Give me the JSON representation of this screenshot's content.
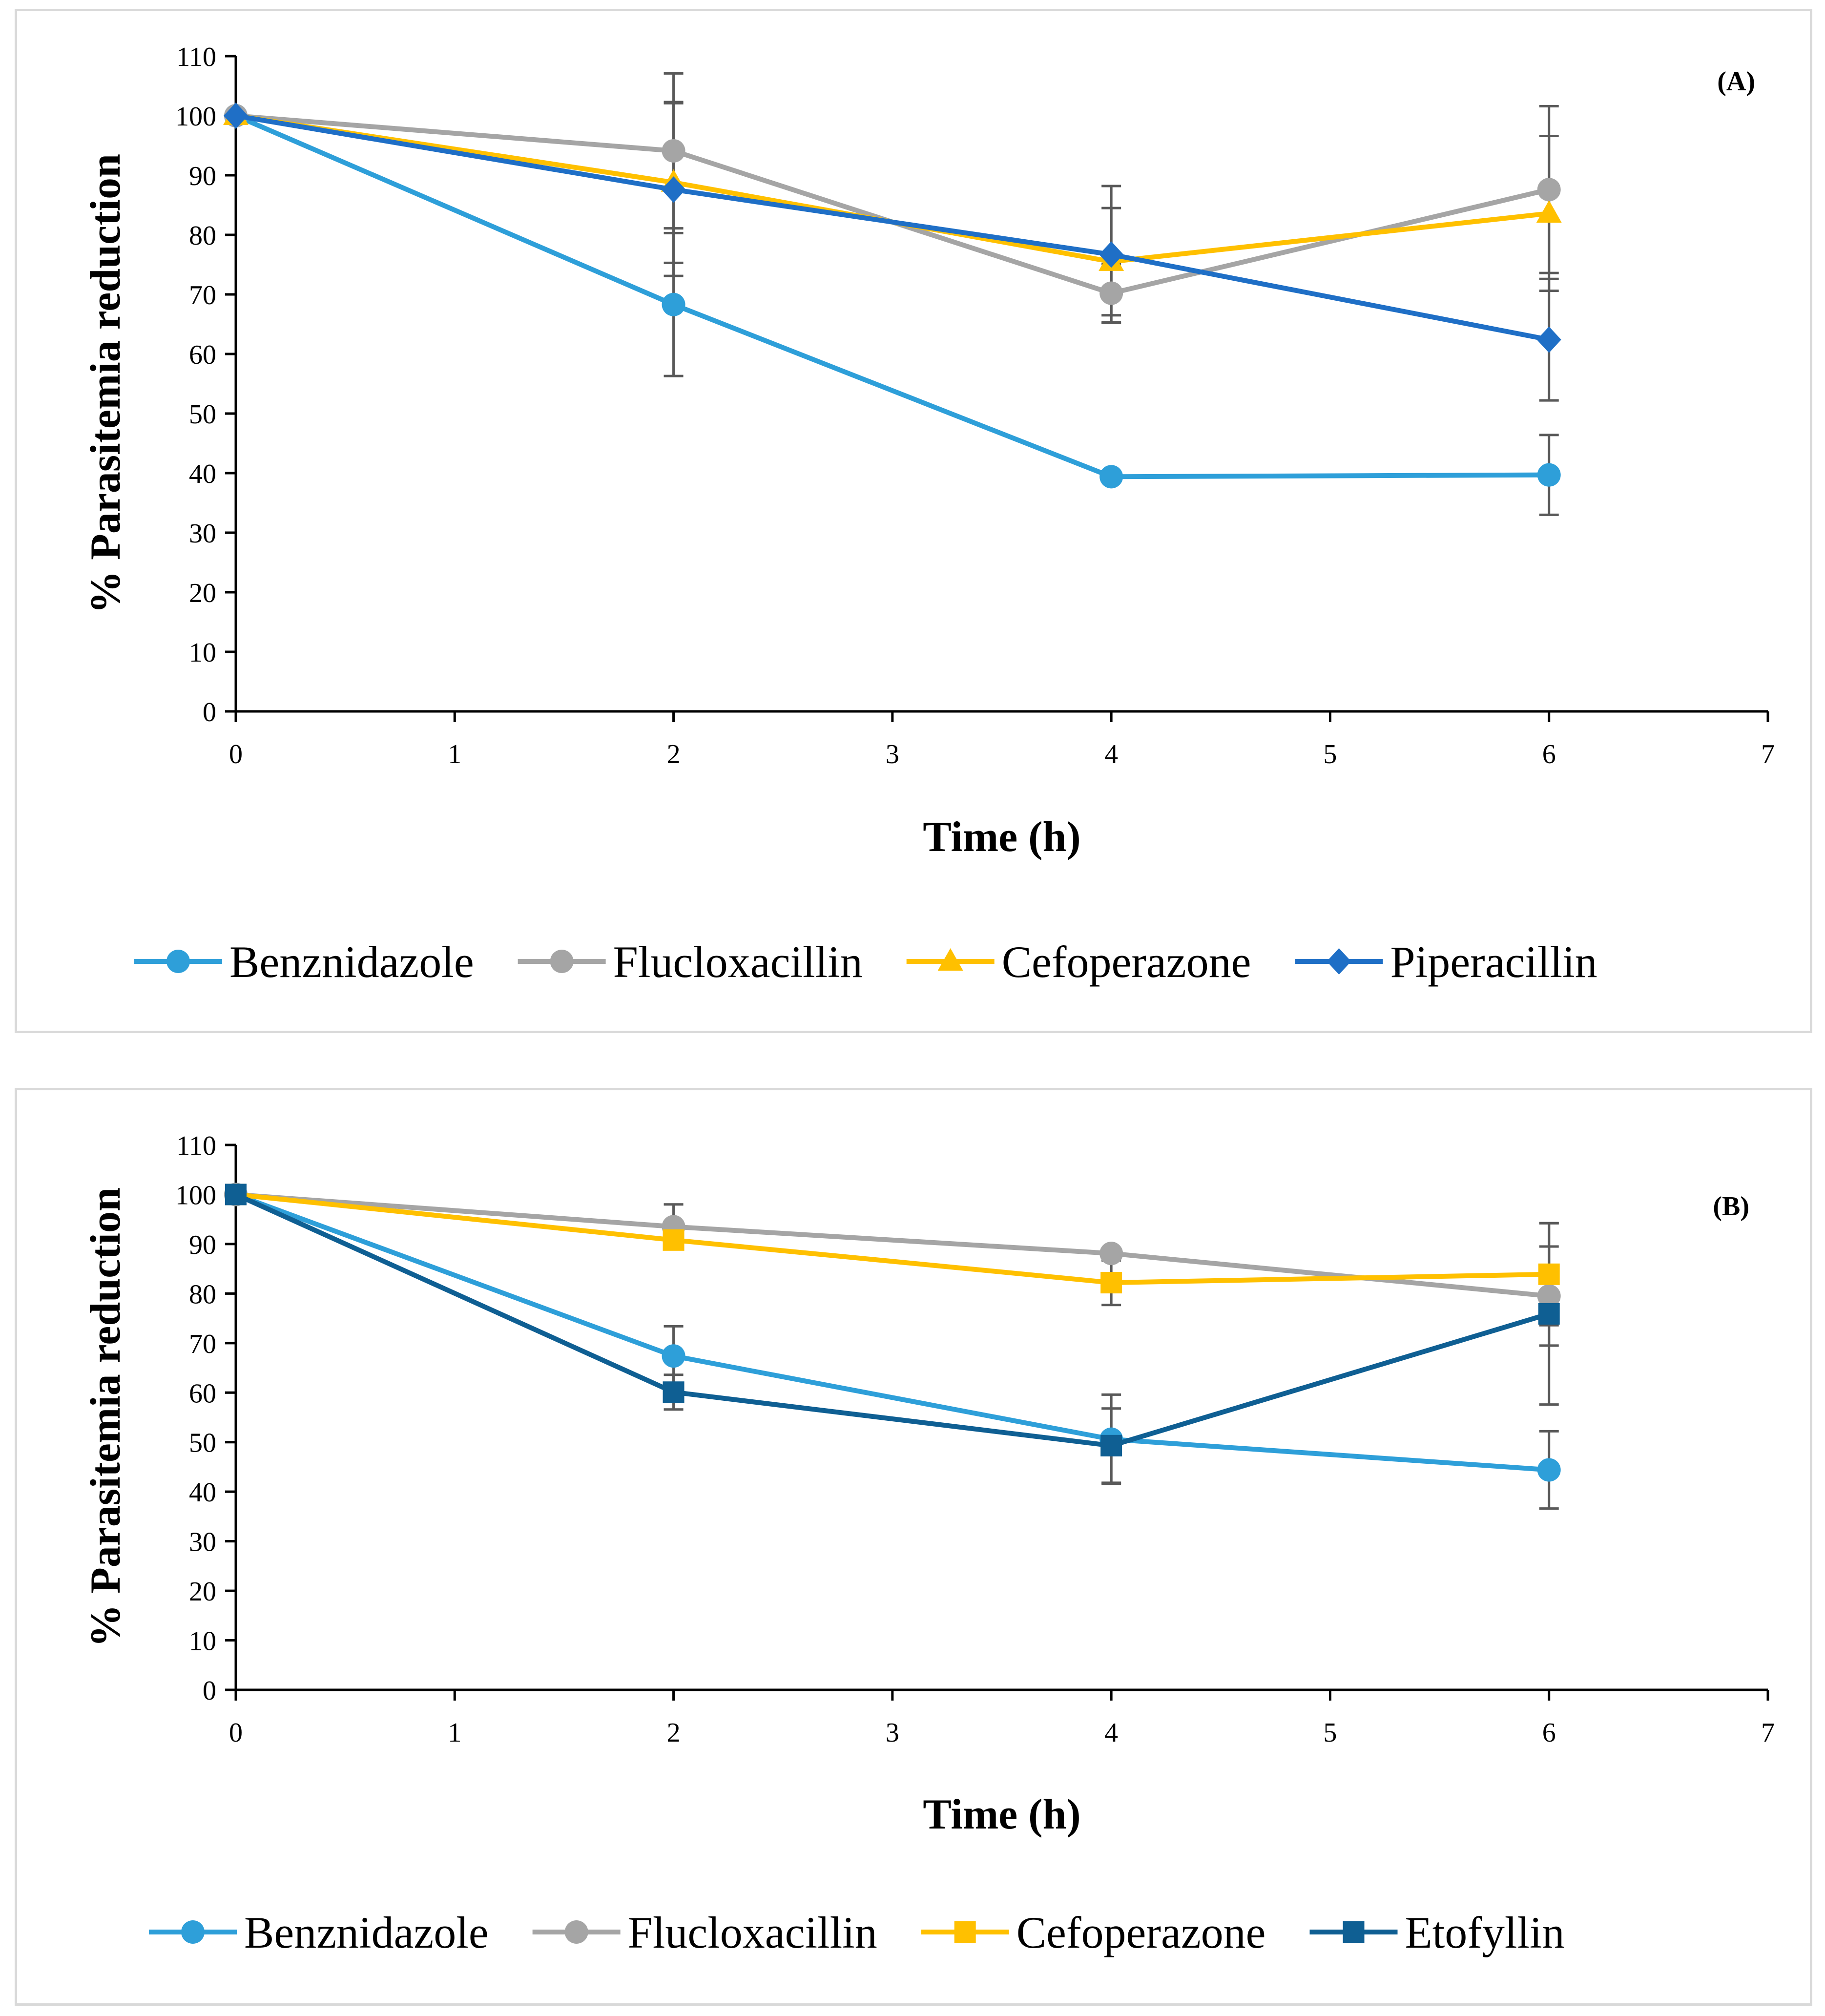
{
  "chart_data": [
    {
      "type": "line",
      "panel_label": "(A)",
      "xlabel": "Time (h)",
      "ylabel": "% Parasitemia reduction",
      "xlim": [
        0,
        7
      ],
      "ylim": [
        0,
        110
      ],
      "x_ticks": [
        0,
        1,
        2,
        3,
        4,
        5,
        6,
        7
      ],
      "y_ticks": [
        0,
        10,
        20,
        30,
        40,
        50,
        60,
        70,
        80,
        90,
        100,
        110
      ],
      "x": [
        0,
        2,
        4,
        6
      ],
      "legend_position": "bottom",
      "series": [
        {
          "name": "Benznidazole",
          "color": "#2e9fd9",
          "marker": "circle",
          "values": [
            100,
            68.3,
            39.4,
            39.7
          ],
          "errors": [
            0,
            12,
            0,
            6.7
          ]
        },
        {
          "name": "Flucloxacillin",
          "color": "#a5a5a5",
          "marker": "circle",
          "values": [
            100,
            94.1,
            70.2,
            87.6
          ],
          "errors": [
            0,
            13,
            4.9,
            14
          ]
        },
        {
          "name": "Cefoperazone",
          "color": "#ffc000",
          "marker": "triangle",
          "values": [
            100,
            88.8,
            75.5,
            83.6
          ],
          "errors": [
            0,
            13.5,
            9,
            13
          ]
        },
        {
          "name": "Piperacillin",
          "color": "#1f6fc6",
          "marker": "diamond",
          "values": [
            100,
            87.6,
            76.7,
            62.4
          ],
          "errors": [
            0,
            14.5,
            11.5,
            10.2
          ]
        }
      ]
    },
    {
      "type": "line",
      "panel_label": "(B)",
      "xlabel": "Time (h)",
      "ylabel": "% Parasitemia reduction",
      "xlim": [
        0,
        7
      ],
      "ylim": [
        0,
        110
      ],
      "x_ticks": [
        0,
        1,
        2,
        3,
        4,
        5,
        6,
        7
      ],
      "y_ticks": [
        0,
        10,
        20,
        30,
        40,
        50,
        60,
        70,
        80,
        90,
        100,
        110
      ],
      "x": [
        0,
        2,
        4,
        6
      ],
      "legend_position": "bottom",
      "series": [
        {
          "name": "Benznidazole",
          "color": "#2e9fd9",
          "marker": "circle",
          "values": [
            100,
            67.4,
            50.6,
            44.4
          ],
          "errors": [
            0,
            6,
            9,
            7.8
          ]
        },
        {
          "name": "Flucloxacillin",
          "color": "#a5a5a5",
          "marker": "circle",
          "values": [
            100,
            93.5,
            88.1,
            79.5
          ],
          "errors": [
            0,
            4.5,
            0,
            10
          ]
        },
        {
          "name": "Cefoperazone",
          "color": "#ffc000",
          "marker": "square",
          "values": [
            100,
            90.8,
            82.2,
            83.9
          ],
          "errors": [
            0,
            0,
            4.5,
            10.3
          ]
        },
        {
          "name": "Etofyllin",
          "color": "#0f5f93",
          "marker": "square",
          "values": [
            100,
            60.1,
            49.3,
            75.9
          ],
          "errors": [
            0,
            3.5,
            7.5,
            18.3
          ]
        }
      ]
    }
  ]
}
